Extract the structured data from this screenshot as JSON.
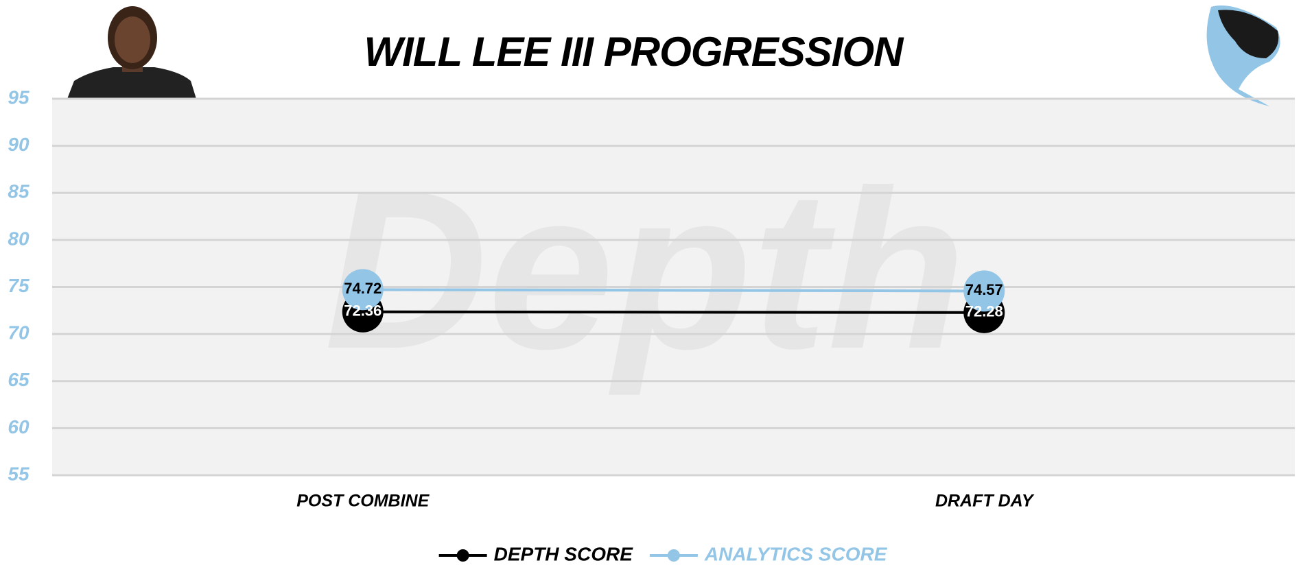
{
  "chart_data": {
    "type": "line",
    "title": "WILL LEE III PROGRESSION",
    "watermark": "Depth",
    "categories": [
      "POST COMBINE",
      "DRAFT DAY"
    ],
    "series": [
      {
        "name": "DEPTH SCORE",
        "color": "#000000",
        "values": [
          72.36,
          72.28
        ]
      },
      {
        "name": "ANALYTICS SCORE",
        "color": "#93c5e6",
        "values": [
          74.72,
          74.57
        ]
      }
    ],
    "ylim": [
      55,
      95
    ],
    "yticks": [
      55,
      60,
      65,
      70,
      75,
      80,
      85,
      90,
      95
    ],
    "grid": true,
    "legend": "bottom"
  }
}
